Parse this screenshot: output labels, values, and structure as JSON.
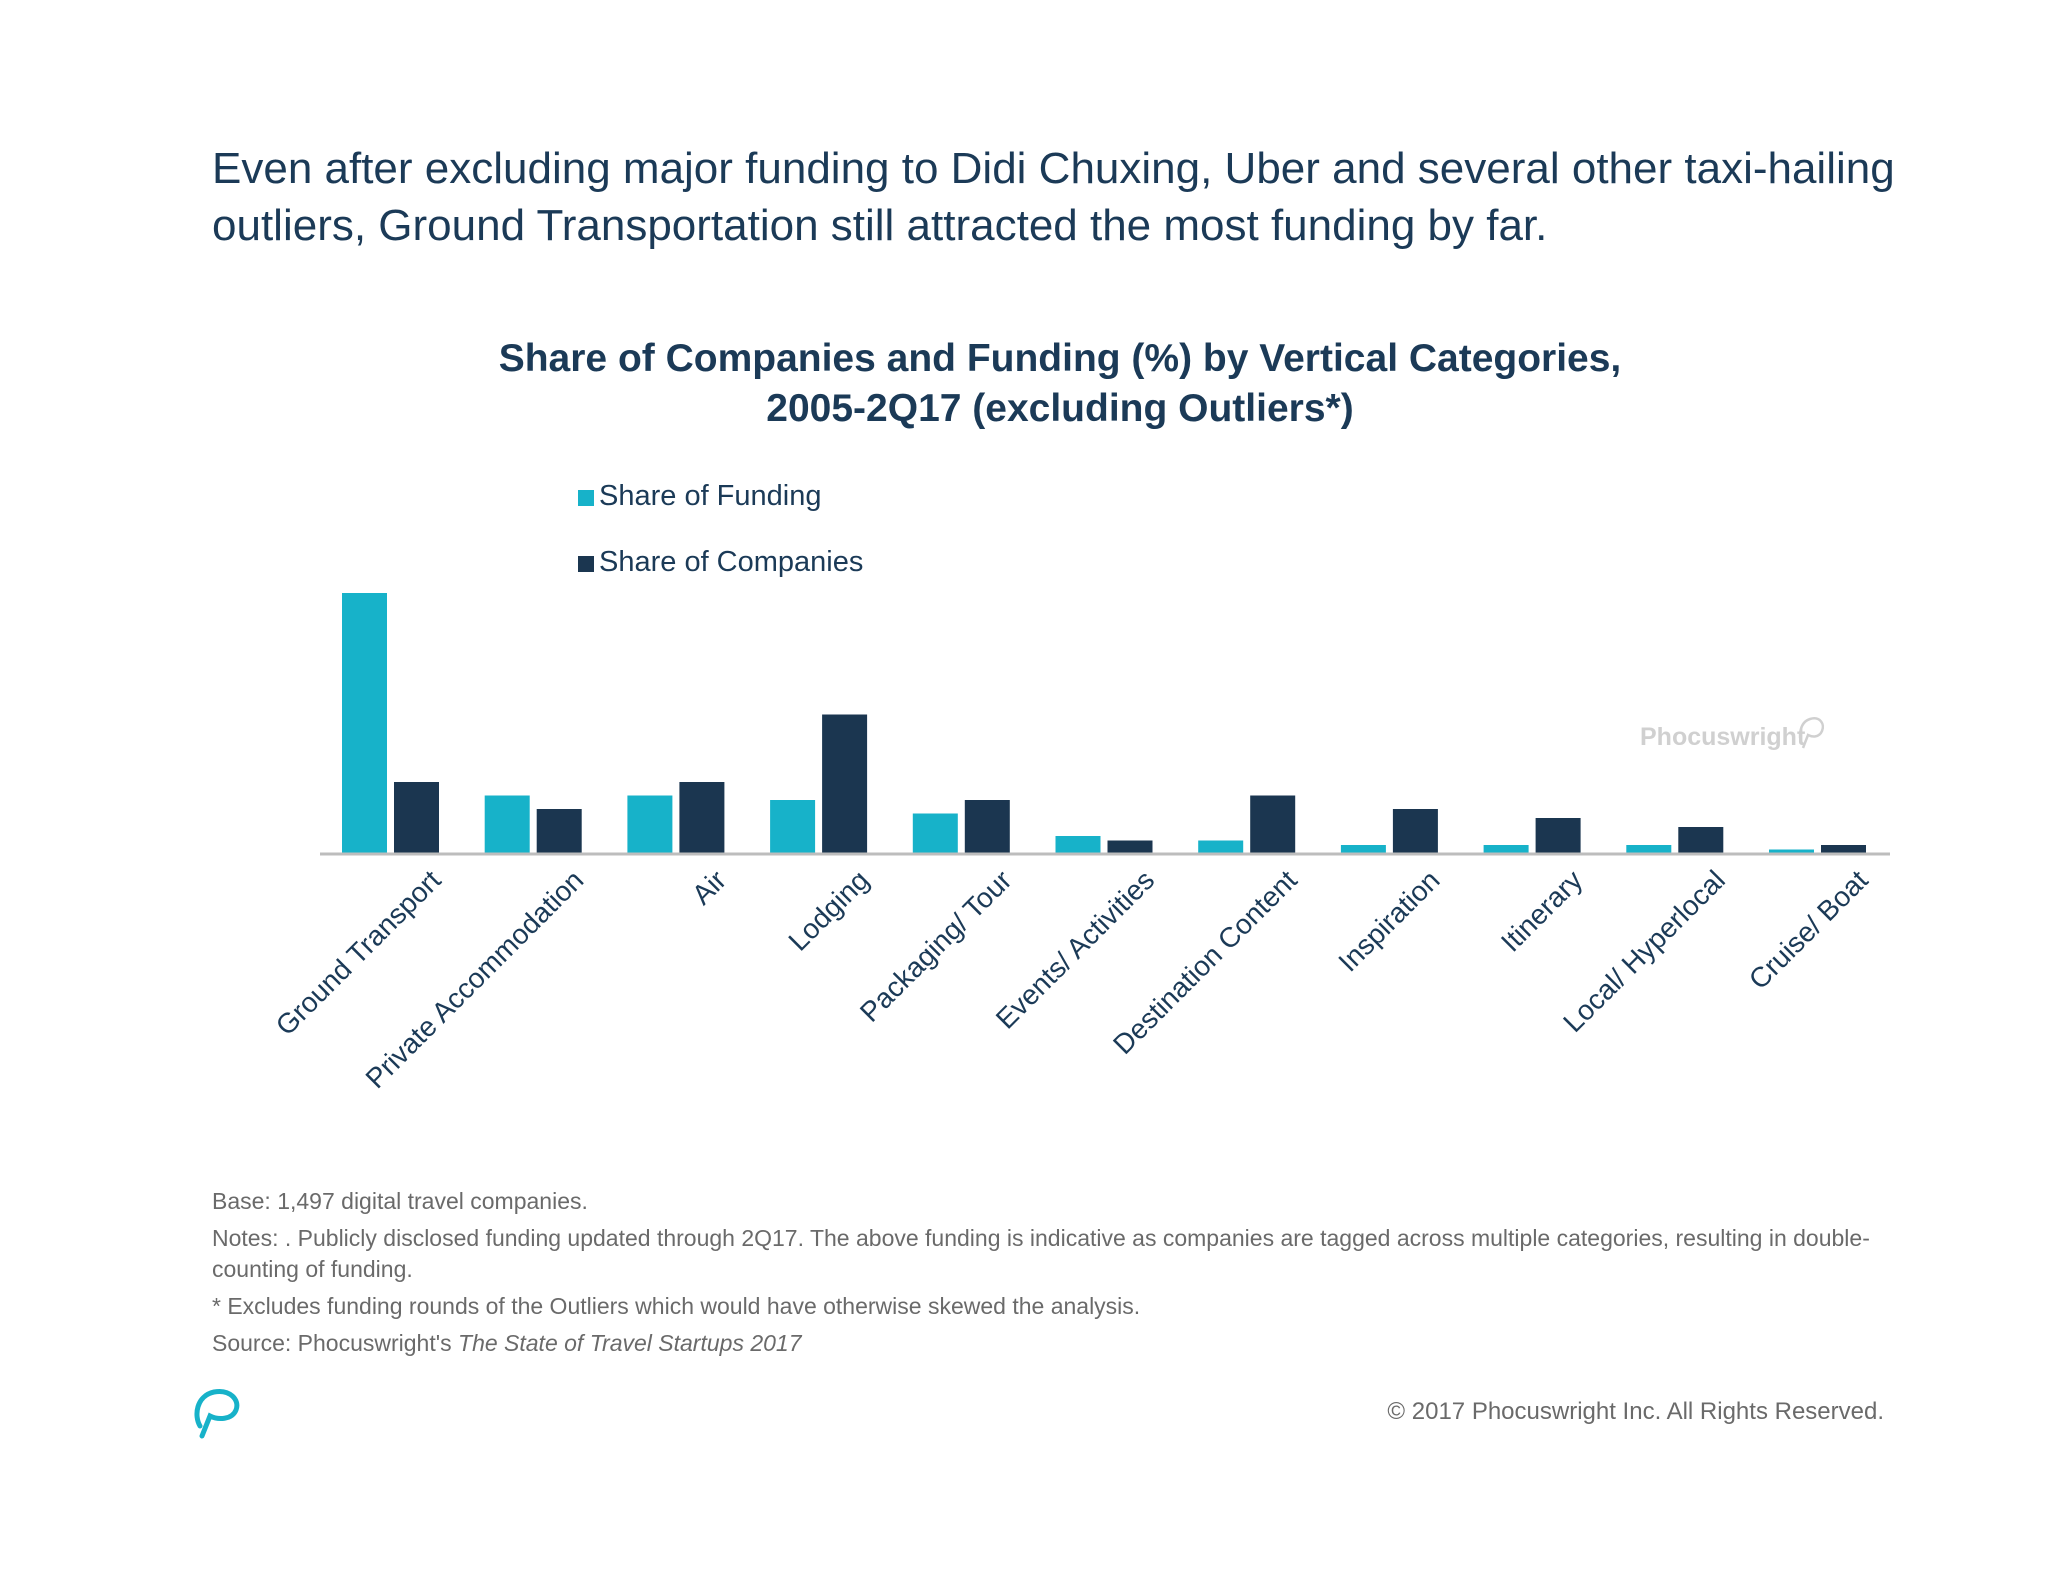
{
  "headline": "Even after excluding major funding to Didi Chuxing, Uber and several other taxi-hailing outliers, Ground Transportation still attracted the most funding by far.",
  "chart_data": {
    "type": "bar",
    "title_line1": "Share of Companies and Funding (%) by Vertical Categories,",
    "title_line2": "2005-2Q17 (excluding Outliers*)",
    "categories": [
      "Ground Transport",
      "Private Accommodation",
      "Air",
      "Lodging",
      "Packaging/ Tour",
      "Events/ Activities",
      "Destination Content",
      "Inspiration",
      "Itinerary",
      "Local/ Hyperlocal",
      "Cruise/ Boat"
    ],
    "series": [
      {
        "name": "Share of Funding",
        "color": "#17b2c9",
        "values": [
          29,
          6.5,
          6.5,
          6,
          4.5,
          2,
          1.5,
          1,
          1,
          1,
          0.5
        ]
      },
      {
        "name": "Share of Companies",
        "color": "#1b3650",
        "values": [
          8,
          5,
          8,
          15.5,
          6,
          1.5,
          6.5,
          5,
          4,
          3,
          1
        ]
      }
    ],
    "ylim": [
      0,
      30
    ],
    "xlabel": "",
    "ylabel": "",
    "legend": "top-left",
    "grid": false,
    "watermark": "Phocuswright"
  },
  "notes": {
    "base": "Base: 1,497 digital travel companies.",
    "notes_text": "Notes: . Publicly disclosed funding updated through 2Q17. The above funding is indicative as companies are tagged across multiple categories, resulting in double-counting of funding.",
    "excludes": "* Excludes funding rounds of the Outliers which would have otherwise skewed the analysis.",
    "source_prefix": "Source: Phocuswright's ",
    "source_title": "The State of Travel Startups 2017"
  },
  "copyright": "© 2017 Phocuswright Inc. All Rights Reserved."
}
